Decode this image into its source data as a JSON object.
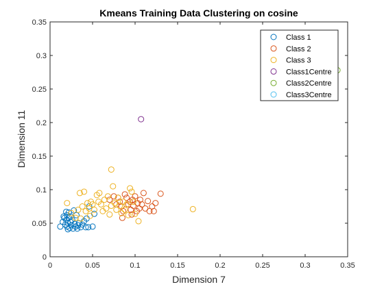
{
  "chart_data": {
    "type": "scatter",
    "title": "Kmeans Training Data Clustering on cosine",
    "xlabel": "Dimension 7",
    "ylabel": "Dimension 11",
    "xlim": [
      0,
      0.35
    ],
    "ylim": [
      0,
      0.35
    ],
    "xticks": [
      0,
      0.05,
      0.1,
      0.15,
      0.2,
      0.25,
      0.3,
      0.35
    ],
    "xtick_labels": [
      "0",
      "0.05",
      "0.1",
      "0.15",
      "0.2",
      "0.25",
      "0.3",
      "0.35"
    ],
    "yticks": [
      0,
      0.05,
      0.1,
      0.15,
      0.2,
      0.25,
      0.3,
      0.35
    ],
    "ytick_labels": [
      "0",
      "0.05",
      "0.1",
      "0.15",
      "0.2",
      "0.25",
      "0.3",
      "0.35"
    ],
    "grid": false,
    "box": true,
    "marker": "open-circle",
    "legend_position": "top-right",
    "series": [
      {
        "name": "Class 1",
        "color": "#0072BD",
        "points": [
          [
            0.012,
            0.045
          ],
          [
            0.015,
            0.052
          ],
          [
            0.016,
            0.06
          ],
          [
            0.017,
            0.058
          ],
          [
            0.018,
            0.048
          ],
          [
            0.019,
            0.055
          ],
          [
            0.02,
            0.062
          ],
          [
            0.02,
            0.045
          ],
          [
            0.021,
            0.05
          ],
          [
            0.022,
            0.058
          ],
          [
            0.022,
            0.066
          ],
          [
            0.023,
            0.043
          ],
          [
            0.024,
            0.052
          ],
          [
            0.025,
            0.047
          ],
          [
            0.026,
            0.055
          ],
          [
            0.027,
            0.042
          ],
          [
            0.028,
            0.069
          ],
          [
            0.029,
            0.049
          ],
          [
            0.03,
            0.045
          ],
          [
            0.031,
            0.062
          ],
          [
            0.032,
            0.042
          ],
          [
            0.034,
            0.05
          ],
          [
            0.036,
            0.044
          ],
          [
            0.038,
            0.048
          ],
          [
            0.04,
            0.053
          ],
          [
            0.042,
            0.044
          ],
          [
            0.045,
            0.044
          ],
          [
            0.046,
            0.075
          ],
          [
            0.05,
            0.045
          ],
          [
            0.052,
            0.064
          ],
          [
            0.019,
            0.067
          ],
          [
            0.024,
            0.06
          ],
          [
            0.021,
            0.041
          ],
          [
            0.033,
            0.047
          ],
          [
            0.043,
            0.057
          ]
        ]
      },
      {
        "name": "Class 2",
        "color": "#D95319",
        "points": [
          [
            0.07,
            0.085
          ],
          [
            0.075,
            0.09
          ],
          [
            0.078,
            0.078
          ],
          [
            0.08,
            0.088
          ],
          [
            0.082,
            0.082
          ],
          [
            0.084,
            0.075
          ],
          [
            0.086,
            0.068
          ],
          [
            0.088,
            0.093
          ],
          [
            0.09,
            0.088
          ],
          [
            0.092,
            0.078
          ],
          [
            0.094,
            0.082
          ],
          [
            0.095,
            0.07
          ],
          [
            0.097,
            0.085
          ],
          [
            0.098,
            0.076
          ],
          [
            0.1,
            0.09
          ],
          [
            0.102,
            0.068
          ],
          [
            0.103,
            0.08
          ],
          [
            0.105,
            0.072
          ],
          [
            0.106,
            0.085
          ],
          [
            0.108,
            0.078
          ],
          [
            0.11,
            0.095
          ],
          [
            0.112,
            0.072
          ],
          [
            0.115,
            0.083
          ],
          [
            0.117,
            0.068
          ],
          [
            0.12,
            0.075
          ],
          [
            0.122,
            0.068
          ],
          [
            0.124,
            0.08
          ],
          [
            0.13,
            0.094
          ],
          [
            0.085,
            0.058
          ],
          [
            0.096,
            0.063
          ]
        ]
      },
      {
        "name": "Class 3",
        "color": "#EDB120",
        "points": [
          [
            0.02,
            0.08
          ],
          [
            0.025,
            0.065
          ],
          [
            0.03,
            0.058
          ],
          [
            0.033,
            0.07
          ],
          [
            0.035,
            0.095
          ],
          [
            0.038,
            0.075
          ],
          [
            0.04,
            0.097
          ],
          [
            0.042,
            0.068
          ],
          [
            0.044,
            0.08
          ],
          [
            0.046,
            0.072
          ],
          [
            0.048,
            0.082
          ],
          [
            0.05,
            0.078
          ],
          [
            0.052,
            0.07
          ],
          [
            0.055,
            0.092
          ],
          [
            0.057,
            0.082
          ],
          [
            0.058,
            0.095
          ],
          [
            0.06,
            0.078
          ],
          [
            0.062,
            0.068
          ],
          [
            0.064,
            0.085
          ],
          [
            0.066,
            0.072
          ],
          [
            0.068,
            0.09
          ],
          [
            0.07,
            0.063
          ],
          [
            0.072,
            0.076
          ],
          [
            0.072,
            0.13
          ],
          [
            0.074,
            0.105
          ],
          [
            0.076,
            0.08
          ],
          [
            0.078,
            0.07
          ],
          [
            0.08,
            0.088
          ],
          [
            0.082,
            0.076
          ],
          [
            0.084,
            0.065
          ],
          [
            0.086,
            0.082
          ],
          [
            0.088,
            0.07
          ],
          [
            0.09,
            0.078
          ],
          [
            0.092,
            0.062
          ],
          [
            0.094,
            0.102
          ],
          [
            0.096,
            0.097
          ],
          [
            0.098,
            0.082
          ],
          [
            0.1,
            0.064
          ],
          [
            0.104,
            0.053
          ],
          [
            0.168,
            0.071
          ],
          [
            0.036,
            0.057
          ],
          [
            0.047,
            0.061
          ]
        ]
      },
      {
        "name": "Class1Centre",
        "color": "#7E2F8E",
        "points": [
          [
            0.107,
            0.205
          ]
        ]
      },
      {
        "name": "Class2Centre",
        "color": "#77AC30",
        "points": [
          [
            0.338,
            0.278
          ]
        ]
      },
      {
        "name": "Class3Centre",
        "color": "#4DBEEE",
        "points": []
      }
    ]
  }
}
